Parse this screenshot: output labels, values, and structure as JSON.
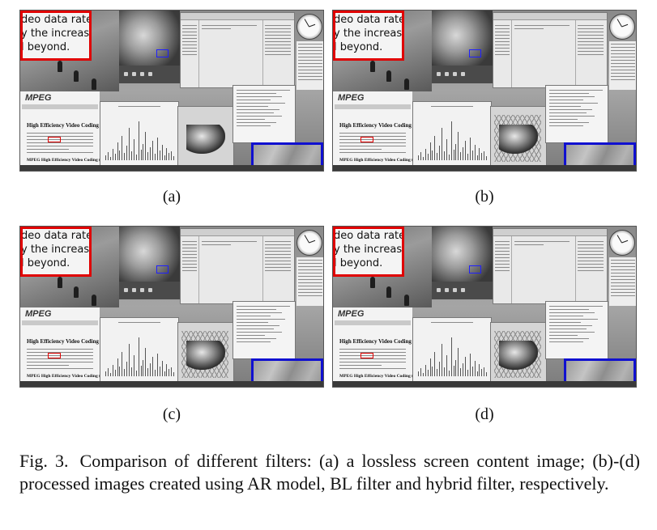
{
  "panels": [
    {
      "id": "a",
      "label": "(a)",
      "zoom_text_lines": [
        "deo data rate",
        "y the increased",
        "l beyond."
      ],
      "mpeg_logo": "MPEG",
      "page_title": "High Efficiency Video Coding",
      "page_subtitle": "MPEG High Efficiency Video Coding (HE",
      "surface_grid": false
    },
    {
      "id": "b",
      "label": "(b)",
      "zoom_text_lines": [
        "deo data rate",
        "y the increased",
        "l beyond."
      ],
      "mpeg_logo": "MPEG",
      "page_title": "High Efficiency Video Coding",
      "page_subtitle": "MPEG High Efficiency Video Coding (HE",
      "surface_grid": true
    },
    {
      "id": "c",
      "label": "(c)",
      "zoom_text_lines": [
        "deo data rate",
        "y the increased",
        "l beyond."
      ],
      "mpeg_logo": "MPEG",
      "page_title": "High Efficiency Video Coding",
      "page_subtitle": "MPEG High Efficiency Video Coding (HE",
      "surface_grid": true
    },
    {
      "id": "d",
      "label": "(d)",
      "zoom_text_lines": [
        "deo data rate",
        "y the increased",
        "l beyond."
      ],
      "mpeg_logo": "MPEG",
      "page_title": "High Efficiency Video Coding",
      "page_subtitle": "MPEG High Efficiency Video Coding (HE",
      "surface_grid": true
    }
  ],
  "caption": {
    "figure_number": "Fig. 3.",
    "text": "Comparison of different filters: (a) a lossless screen content image; (b)-(d) processed images created using AR model, BL filter and hybrid filter, respectively."
  },
  "colors": {
    "zoom_text_box": "#e00000",
    "zoom_texture_box": "#1010d0"
  }
}
